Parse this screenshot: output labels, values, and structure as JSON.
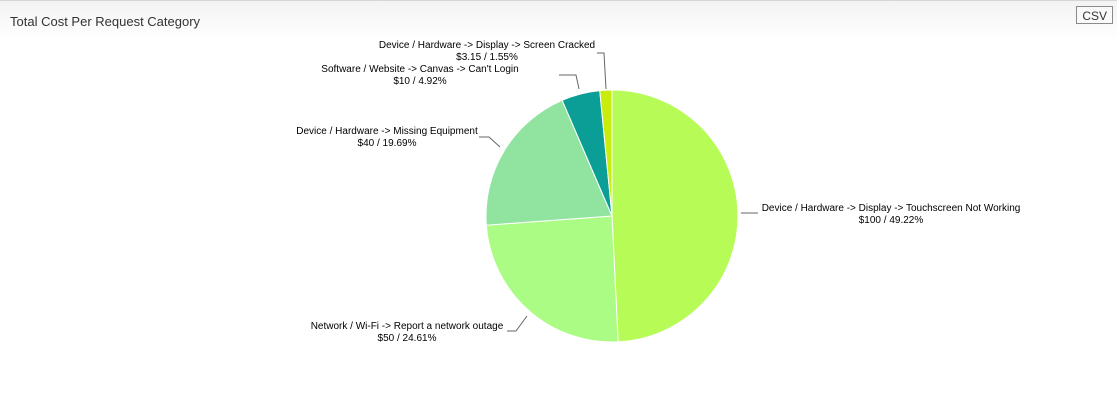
{
  "panel": {
    "title": "Total Cost Per Request Category",
    "csv_label": "CSV"
  },
  "chart_data": {
    "type": "pie",
    "title": "Total Cost Per Request Category",
    "slices": [
      {
        "name": "Device / Hardware -> Display -> Touchscreen Not Working",
        "value": 100,
        "percent": 49.22,
        "label": "$100 / 49.22%",
        "color": "#b6fb56"
      },
      {
        "name": "Network / Wi-Fi -> Report a network outage",
        "value": 50,
        "percent": 24.61,
        "label": "$50 / 24.61%",
        "color": "#aafc85"
      },
      {
        "name": "Device / Hardware -> Missing Equipment",
        "value": 40,
        "percent": 19.69,
        "label": "$40 / 19.69%",
        "color": "#90e4a0"
      },
      {
        "name": "Software / Website -> Canvas -> Can't Login",
        "value": 10,
        "percent": 4.92,
        "label": "$10 / 4.92%",
        "color": "#0b9e96"
      },
      {
        "name": "Device / Hardware -> Display -> Screen Cracked",
        "value": 3.15,
        "percent": 1.55,
        "label": "$3.15 / 1.55%",
        "color": "#c8ec0d"
      }
    ]
  }
}
